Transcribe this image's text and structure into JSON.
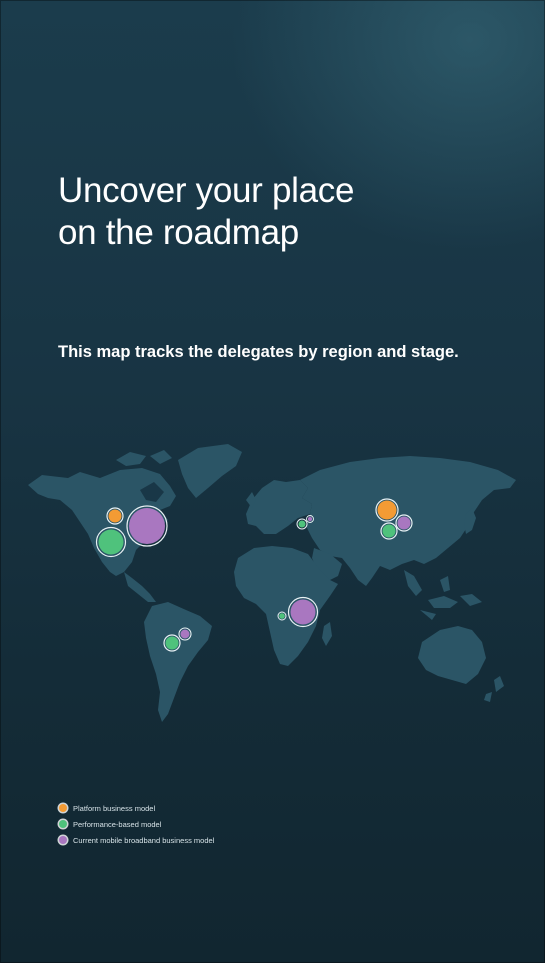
{
  "header": {
    "title_line1": "Uncover your place",
    "title_line2": "on the roadmap",
    "subtitle": "This map tracks the delegates by region and stage."
  },
  "colors": {
    "platform": "#f39b34",
    "performance": "#4fc27c",
    "broadband": "#a977c0",
    "land": "#2b5566",
    "background": "#173341"
  },
  "legend": [
    {
      "key": "platform",
      "label": "Platform business model",
      "color": "#f39b34"
    },
    {
      "key": "performance",
      "label": "Performance-based model",
      "color": "#4fc27c"
    },
    {
      "key": "broadband",
      "label": "Current mobile broadband business model",
      "color": "#a977c0"
    }
  ],
  "map_data": {
    "type": "bubble-map",
    "markers": [
      {
        "region": "North America",
        "model": "platform",
        "size": "small"
      },
      {
        "region": "North America",
        "model": "performance",
        "size": "medium"
      },
      {
        "region": "North America",
        "model": "broadband",
        "size": "large"
      },
      {
        "region": "South America",
        "model": "performance",
        "size": "small"
      },
      {
        "region": "South America",
        "model": "broadband",
        "size": "tiny"
      },
      {
        "region": "Europe",
        "model": "performance",
        "size": "tiny"
      },
      {
        "region": "Europe",
        "model": "broadband",
        "size": "tiny"
      },
      {
        "region": "Africa",
        "model": "performance",
        "size": "tiny"
      },
      {
        "region": "Africa",
        "model": "broadband",
        "size": "medium"
      },
      {
        "region": "Asia",
        "model": "platform",
        "size": "small"
      },
      {
        "region": "Asia",
        "model": "performance",
        "size": "small"
      },
      {
        "region": "Asia",
        "model": "broadband",
        "size": "small"
      }
    ]
  }
}
